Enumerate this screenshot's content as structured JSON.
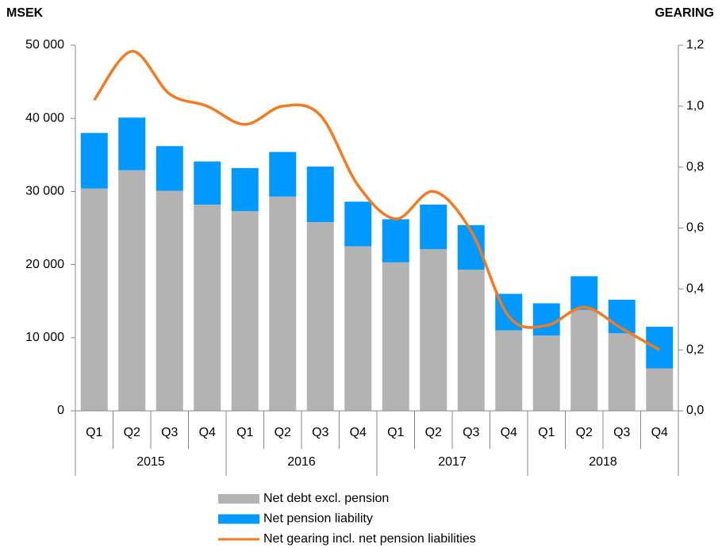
{
  "chart_data": {
    "type": "bar-line",
    "ylabel": "MSEK",
    "y2label": "GEARING",
    "categories": [
      "Q1",
      "Q2",
      "Q3",
      "Q4",
      "Q1",
      "Q2",
      "Q3",
      "Q4",
      "Q1",
      "Q2",
      "Q3",
      "Q4",
      "Q1",
      "Q2",
      "Q3",
      "Q4"
    ],
    "groups": [
      "2015",
      "2016",
      "2017",
      "2018"
    ],
    "stacked": true,
    "series": [
      {
        "name": "Net debt excl. pension",
        "type": "bar",
        "color": "#b3b3b3",
        "values": [
          30400,
          32900,
          30100,
          28200,
          27300,
          29300,
          25800,
          22500,
          20300,
          22100,
          19300,
          11000,
          10300,
          13800,
          10600,
          5800
        ]
      },
      {
        "name": "Net pension liability",
        "type": "bar",
        "color": "#0099ff",
        "values": [
          7600,
          7200,
          6100,
          5900,
          5900,
          6100,
          7600,
          6100,
          5900,
          6100,
          6100,
          5000,
          4400,
          4600,
          4600,
          5700
        ]
      },
      {
        "name": "Net gearing incl. net pension liabilities",
        "type": "line",
        "axis": "y2",
        "color": "#f47a1f",
        "values": [
          1.02,
          1.18,
          1.04,
          1.0,
          0.94,
          1.0,
          0.97,
          0.74,
          0.63,
          0.72,
          0.59,
          0.31,
          0.28,
          0.34,
          0.27,
          0.2
        ]
      }
    ],
    "ylim": [
      0,
      50000
    ],
    "yticks": [
      0,
      {
        "value": 10000,
        "label": "10 000"
      },
      {
        "value": 20000,
        "label": "20 000"
      },
      {
        "value": 30000,
        "label": "30 000"
      },
      {
        "value": 40000,
        "label": "40 000"
      },
      {
        "value": 50000,
        "label": "50 000"
      }
    ],
    "y2lim": [
      0,
      1.2
    ],
    "y2ticks": [
      {
        "value": 0,
        "label": "0,0"
      },
      {
        "value": 0.2,
        "label": "0,2"
      },
      {
        "value": 0.4,
        "label": "0,4"
      },
      {
        "value": 0.6,
        "label": "0,6"
      },
      {
        "value": 0.8,
        "label": "0,8"
      },
      {
        "value": 1.0,
        "label": "1,0"
      },
      {
        "value": 1.2,
        "label": "1,2"
      }
    ],
    "grid": false
  }
}
